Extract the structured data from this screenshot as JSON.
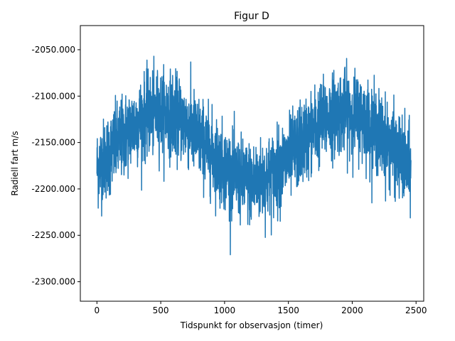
{
  "chart_data": {
    "type": "line",
    "title": "Figur D",
    "xlabel": "Tidspunkt for observasjon (timer)",
    "ylabel": "Radiell fart m/s",
    "xlim": [
      -130,
      2560
    ],
    "ylim": [
      -2321,
      -2024
    ],
    "xticks": [
      0,
      500,
      1000,
      1500,
      2000,
      2500
    ],
    "xtick_labels": [
      "0",
      "500",
      "1000",
      "1500",
      "2000",
      "2500"
    ],
    "yticks": [
      -2050,
      -2100,
      -2150,
      -2200,
      -2250,
      -2300
    ],
    "ytick_labels": [
      "-2050.000",
      "-2100.000",
      "-2150.000",
      "-2200.000",
      "-2250.000",
      "-2300.000"
    ],
    "grid": false,
    "line_color": "#1f77b4",
    "series": [
      {
        "x_start": 0,
        "x_end": 2460,
        "n_points": 2461,
        "period": 1440,
        "phase_peak_x": 500,
        "mean": -2155,
        "amplitude": 38,
        "noise_sd": 22,
        "y_min_observed": -2305,
        "y_max_observed": -2045
      }
    ]
  }
}
